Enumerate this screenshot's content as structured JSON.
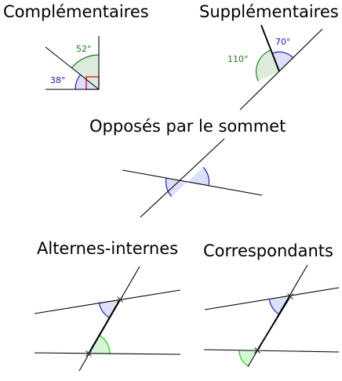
{
  "titles": {
    "complementaires": "Complémentaires",
    "supplementaires": "Supplémentaires",
    "opposes": "Opposés par le sommet",
    "alternes": "Alternes-internes",
    "correspondants": "Correspondants"
  },
  "angles": {
    "comp_green": "52°",
    "comp_blue": "38°",
    "supp_blue": "70°",
    "supp_green": "110°"
  },
  "colors": {
    "blue_stroke": "#2020b0",
    "blue_fill": "#dde0fa",
    "green_stroke": "#1a7a1a",
    "green_fill": "#dcebdc",
    "bright_green_stroke": "#22cc22",
    "bright_green_fill": "#d6f5d6",
    "right_angle": "#cc0000",
    "line": "#000000"
  }
}
